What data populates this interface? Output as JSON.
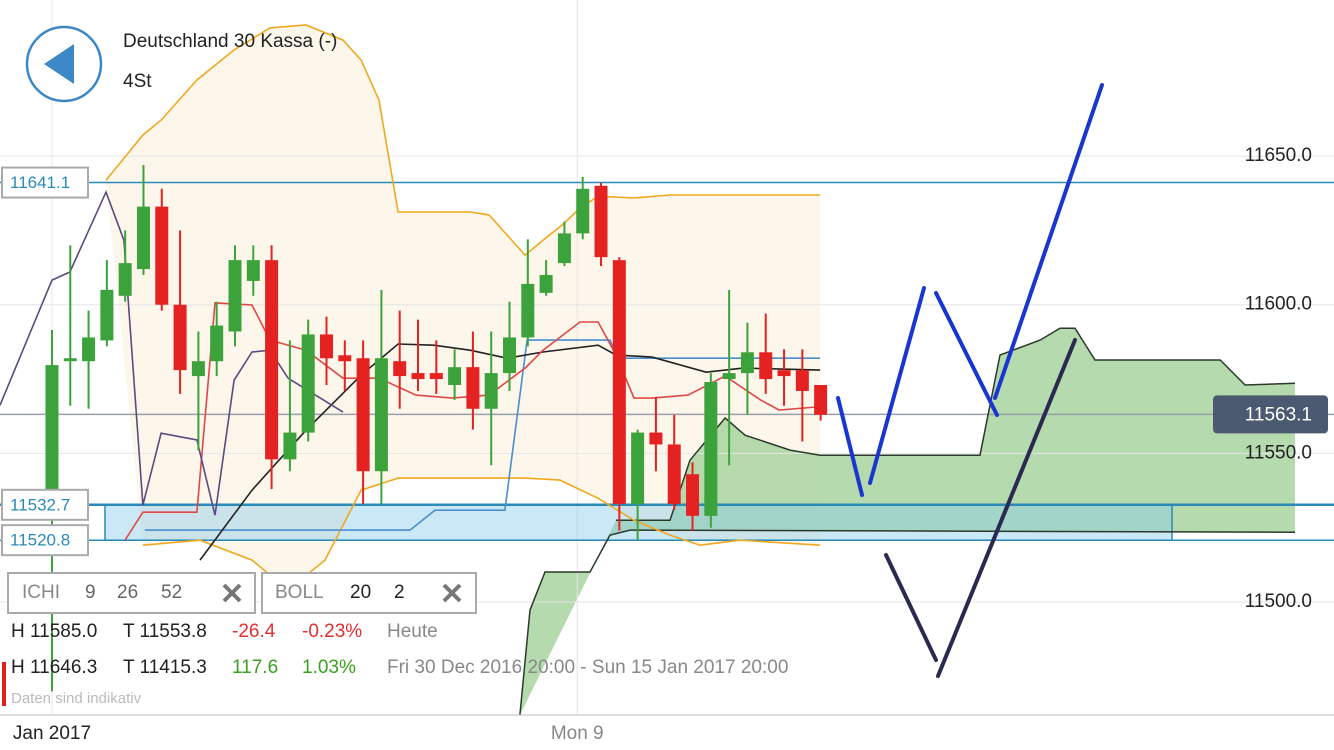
{
  "header": {
    "title": "Deutschland 30 Kassa (-)",
    "interval": "4St"
  },
  "indicators": [
    {
      "name": "ICHI",
      "params": [
        9,
        26,
        52
      ]
    },
    {
      "name": "BOLL",
      "params": [
        20,
        2
      ]
    }
  ],
  "stats": [
    {
      "high": "H 11585.0",
      "low": "T 11553.8",
      "change": "-26.4",
      "change_pct": "-0.23%",
      "period": "Heute"
    },
    {
      "high": "H 11646.3",
      "low": "T 11415.3",
      "change": "117.6",
      "change_pct": "1.03%",
      "period": "Fri 30 Dec 2016 20:00 - Sun 15 Jan 2017 20:00"
    }
  ],
  "disclaimer": "Daten sind indikativ",
  "chart_data": {
    "type": "candlestick",
    "up_color": "#3ca33c",
    "down_color": "#e52222",
    "grid": true,
    "xlim": [
      -2.84,
      70.05
    ],
    "ylim": [
      11462,
      11702.5
    ],
    "xticks": [
      {
        "value": 0,
        "label": "Jan 2017"
      },
      {
        "value": 28.7,
        "label": "Mon 9"
      }
    ],
    "yticks": [
      {
        "value": 11500,
        "label": "11500.0"
      },
      {
        "value": 11550,
        "label": "11550.0"
      },
      {
        "value": 11600,
        "label": "11600.0"
      },
      {
        "value": 11650,
        "label": "11650.0"
      }
    ],
    "open": [
      11532.6,
      11581,
      11581,
      11588,
      11603,
      11612,
      11633,
      11600,
      11576,
      11581,
      11591,
      11608,
      11615,
      11548,
      11557,
      11590,
      11583,
      11582,
      11544,
      11581,
      11577,
      11577,
      11573,
      11579,
      11565,
      11577,
      11589,
      11604,
      11614,
      11624,
      11640,
      11615,
      11533,
      11557,
      11553,
      11543,
      11529,
      11575,
      11577,
      11584,
      11578,
      11578,
      11573
    ],
    "high": [
      11591.5,
      11620,
      11598,
      11615,
      11625,
      11647,
      11639,
      11625,
      11591,
      11601,
      11620,
      11620,
      11620,
      11588,
      11595,
      11596,
      11588,
      11588,
      11605,
      11598,
      11595,
      11588,
      11585,
      11591,
      11591,
      11601,
      11622,
      11615,
      11628,
      11643,
      11641,
      11616,
      11558,
      11569,
      11563,
      11547,
      11577,
      11605,
      11594,
      11597,
      11585,
      11585,
      11573
    ],
    "low": [
      11470,
      11566,
      11565,
      11586,
      11601,
      11610,
      11598,
      11570,
      11551,
      11576,
      11586,
      11603,
      11538,
      11544,
      11554,
      11573,
      11571,
      11533,
      11533,
      11565,
      11571,
      11570,
      11568,
      11558,
      11546,
      11571,
      11586,
      11603,
      11613,
      11622,
      11613,
      11524,
      11521,
      11544,
      11531,
      11524,
      11525,
      11546,
      11563,
      11570,
      11566,
      11554,
      11561
    ],
    "close": [
      11579.7,
      11582,
      11589,
      11605,
      11614,
      11633,
      11600,
      11578,
      11581,
      11593,
      11615,
      11615,
      11548,
      11557,
      11590,
      11582,
      11581,
      11544,
      11582,
      11576,
      11575,
      11575,
      11579,
      11565,
      11577,
      11589,
      11607,
      11610,
      11624,
      11639,
      11616,
      11533,
      11557,
      11553,
      11533,
      11529,
      11574,
      11577,
      11584,
      11575,
      11576,
      11571,
      11563
    ],
    "band_fill": "#fdf6ea",
    "series": [
      {
        "color": "#f0a820",
        "x": [
          2.95,
          4.97,
          5.96,
          7.92,
          9.95,
          11.91,
          13.88,
          15.9,
          16.89,
          17.87,
          18.91,
          22.84,
          23.88,
          25.85,
          26.83,
          27.87,
          28.85,
          29.84,
          31.8,
          33.77,
          41.97
        ],
        "values": [
          11641.9,
          11657.1,
          11662.1,
          11675.6,
          11685.7,
          11693.1,
          11694.1,
          11689.0,
          11682.3,
          11668.8,
          11631.2,
          11631.2,
          11630.2,
          11616.7,
          11621.7,
          11626.8,
          11632.5,
          11636.5,
          11635.9,
          11636.9,
          11636.9
        ]
      },
      {
        "color": "#f0a820",
        "x": [
          4.97,
          8.09,
          10.93,
          12.9,
          14.92,
          16.89,
          18.91,
          25.85,
          27.76,
          29.84,
          31.8,
          33.77,
          35.41,
          37.6,
          41.97
        ],
        "values": [
          11519.1,
          11520.8,
          11514.1,
          11504.0,
          11514.1,
          11537.6,
          11541.7,
          11541.7,
          11541.0,
          11534.9,
          11527.5,
          11522.5,
          11519.1,
          11520.8,
          11519.1
        ]
      },
      {
        "color": "#4a8ed0",
        "x": [
          5.08,
          19.56,
          20.93,
          24.75,
          25.96,
          30.49,
          30.93,
          41.97
        ],
        "values": [
          11524.2,
          11524.2,
          11530.9,
          11530.9,
          11588.1,
          11588.1,
          11582.0,
          11582.0
        ]
      },
      {
        "color": "#222222",
        "x": [
          8.09,
          10.93,
          13.88,
          16.89,
          18.91,
          20.87,
          22.84,
          24.86,
          26.83,
          29.84,
          30.82,
          32.79,
          35.74,
          37.76,
          41.97
        ],
        "values": [
          11514.1,
          11537.6,
          11557.8,
          11576.3,
          11586.8,
          11586.4,
          11584.7,
          11582.0,
          11584.1,
          11586.4,
          11583.1,
          11582.4,
          11577.3,
          11578.7,
          11578.0
        ]
      },
      {
        "color": "#e04848",
        "x": [
          3.99,
          4.97,
          7.92,
          8.91,
          10.93,
          11.91,
          13.88,
          15.9,
          17.87,
          19.89,
          21.86,
          23.88,
          25.85,
          26.83,
          28.85,
          29.84,
          30.82,
          31.8,
          32.79,
          34.75,
          36.78,
          38.74,
          39.73,
          41.75
        ],
        "values": [
          11520.8,
          11530.2,
          11530.2,
          11600.6,
          11599.9,
          11588.1,
          11584.7,
          11575.3,
          11575.3,
          11569.6,
          11568.6,
          11569.6,
          11578.7,
          11584.7,
          11594.2,
          11594.2,
          11583.1,
          11568.6,
          11568.6,
          11569.6,
          11576.0,
          11567.9,
          11564.6,
          11565.6
        ]
      },
      {
        "color": "#5a4a80",
        "x": [
          -2.84,
          0,
          0.98,
          2.95,
          3.93,
          4.97,
          5.96,
          7.92,
          8.91,
          9.95,
          10.93,
          11.91,
          12.9,
          15.9
        ],
        "values": [
          11566.2,
          11608.3,
          11611.0,
          11637.9,
          11621.7,
          11532.6,
          11556.8,
          11554.5,
          11529.2,
          11574.6,
          11584.1,
          11584.7,
          11575.3,
          11563.9
        ]
      }
    ],
    "cloud": {
      "color": "#a8d4a0",
      "line_color": "#2a3a2a",
      "upper": {
        "x": [
          30.82,
          33.77,
          34.86,
          36.78,
          37.87,
          40.33,
          41.97,
          50.71,
          51.8,
          53.99,
          55.08,
          55.9,
          56.99,
          63.83,
          65.19,
          67.92
        ],
        "values": [
          11527.5,
          11527.5,
          11547.7,
          11561.9,
          11556.1,
          11551.1,
          11549.4,
          11549.4,
          11583.1,
          11588.1,
          11592.1,
          11592.1,
          11581.4,
          11581.4,
          11573.0,
          11573.6
        ]
      },
      "lower": {
        "x": [
          25.57,
          26.12,
          26.94,
          29.4,
          30.49,
          31.58,
          67.92
        ],
        "values": [
          11462,
          11497.3,
          11510.1,
          11510.1,
          11522.5,
          11524.2,
          11523.5
        ]
      }
    },
    "levels": [
      11641.1,
      11532.7,
      11520.8
    ],
    "level_color": "#2a8ab8",
    "last_price": 11563.1
  }
}
